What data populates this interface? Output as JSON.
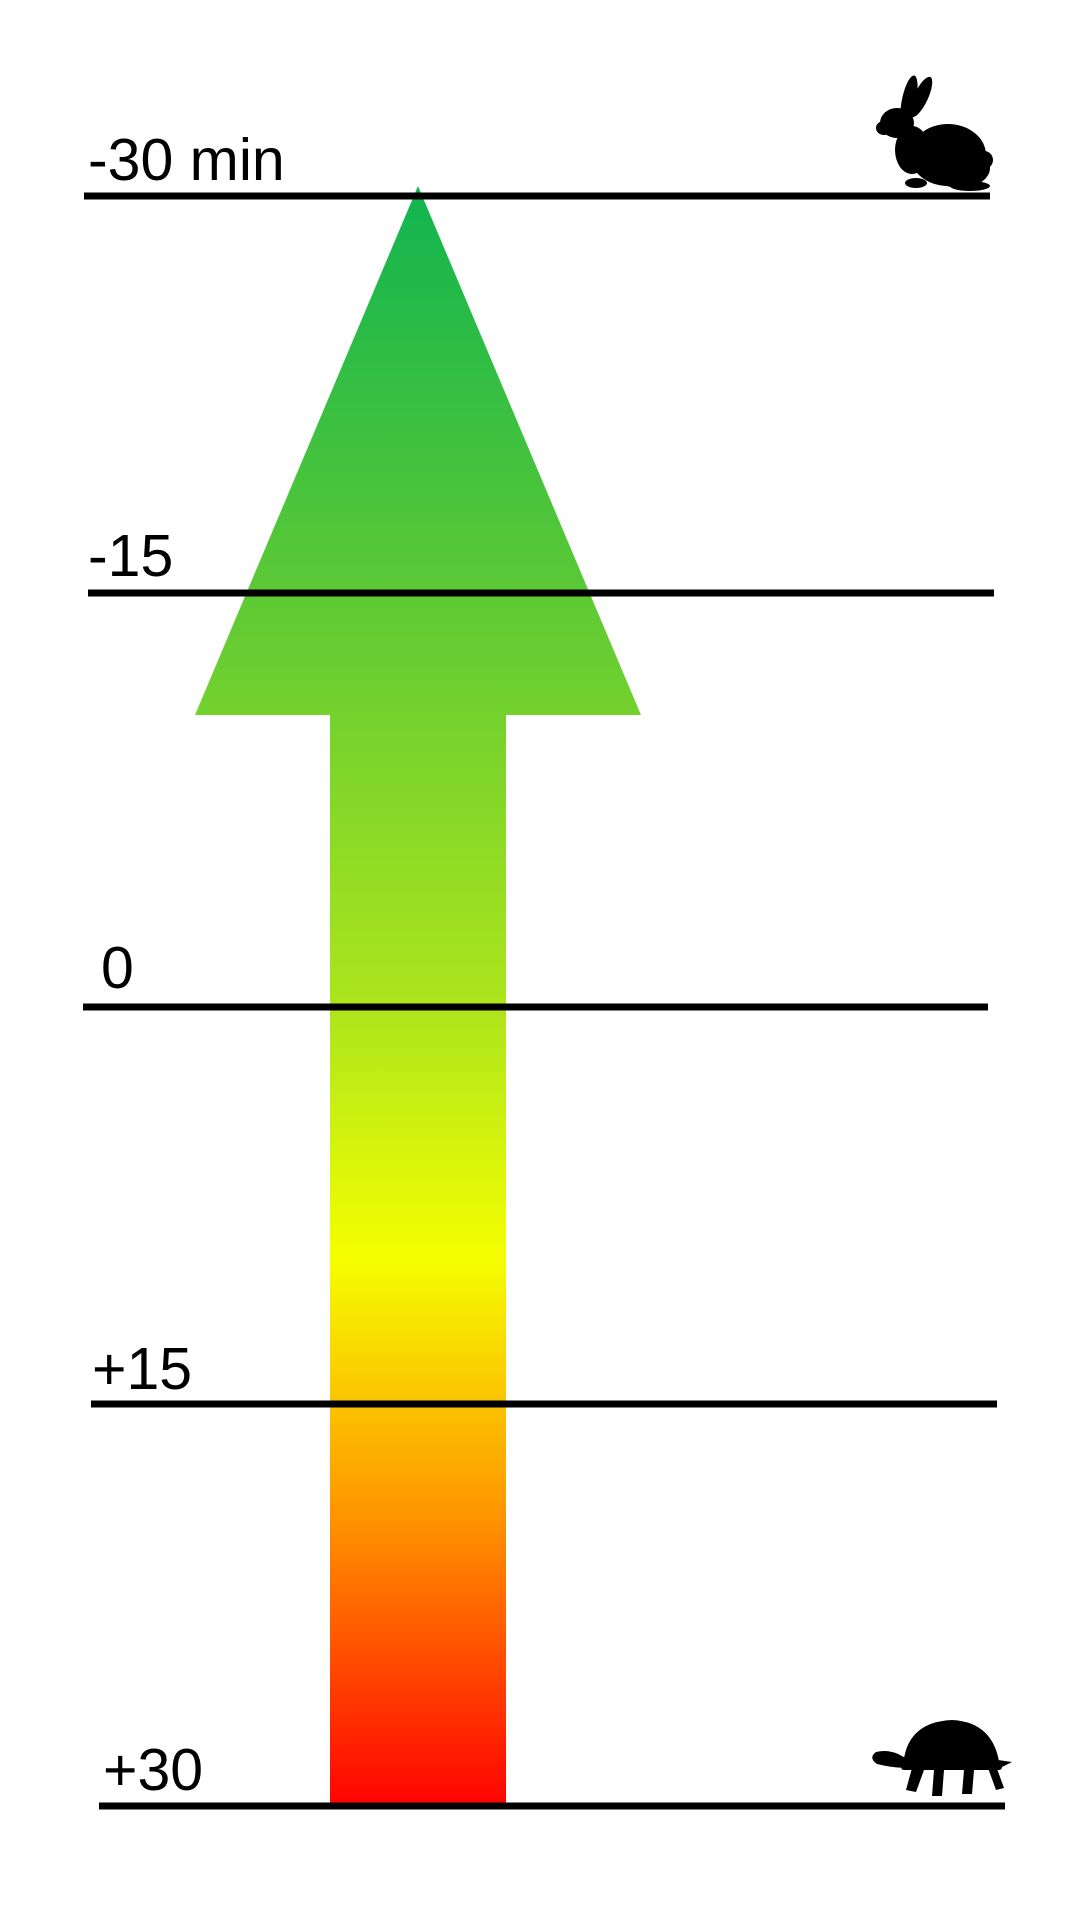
{
  "scale": {
    "labels": {
      "minus_30": "-30 min",
      "minus_15": "-15",
      "zero": "0",
      "plus_15": "+15",
      "plus_30": "+30"
    },
    "arrow_direction": "up",
    "gradient_colors": {
      "top": "#10b450",
      "upper": "#5cc935",
      "mid_upper": "#b2e71a",
      "middle": "#f5ff00",
      "lower": "#ff9400",
      "bottom": "#ff0000"
    },
    "line_color": "#000000"
  },
  "icons": {
    "top_right": "rabbit-icon",
    "bottom_right": "tortoise-icon"
  }
}
